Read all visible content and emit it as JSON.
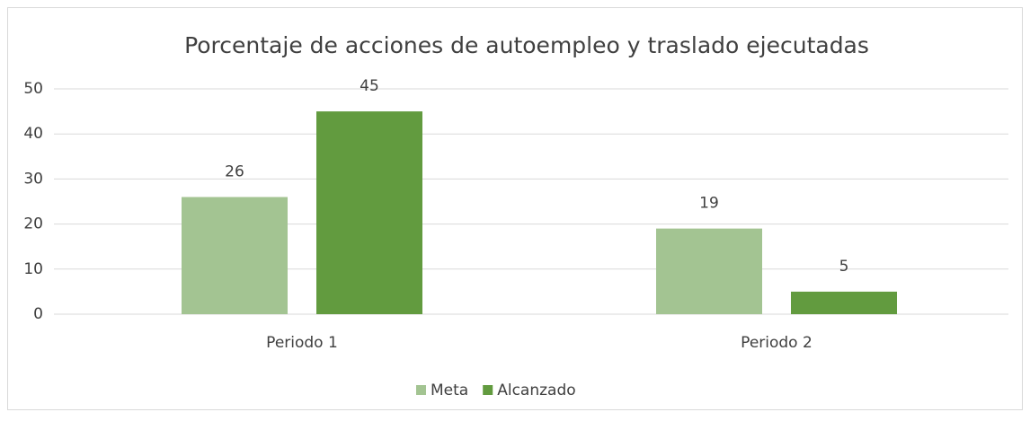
{
  "chart_data": {
    "type": "bar",
    "title": "Porcentaje de acciones de autoempleo y traslado ejecutadas",
    "categories": [
      "Periodo 1",
      "Periodo 2"
    ],
    "series": [
      {
        "name": "Meta",
        "color": "#a3c492",
        "values": [
          26,
          19
        ]
      },
      {
        "name": "Alcanzado",
        "color": "#629b3f",
        "values": [
          45,
          5
        ]
      }
    ],
    "ylim": [
      0,
      50
    ],
    "yticks": [
      0,
      10,
      20,
      30,
      40,
      50
    ],
    "grid": true,
    "legend": "bottom"
  }
}
